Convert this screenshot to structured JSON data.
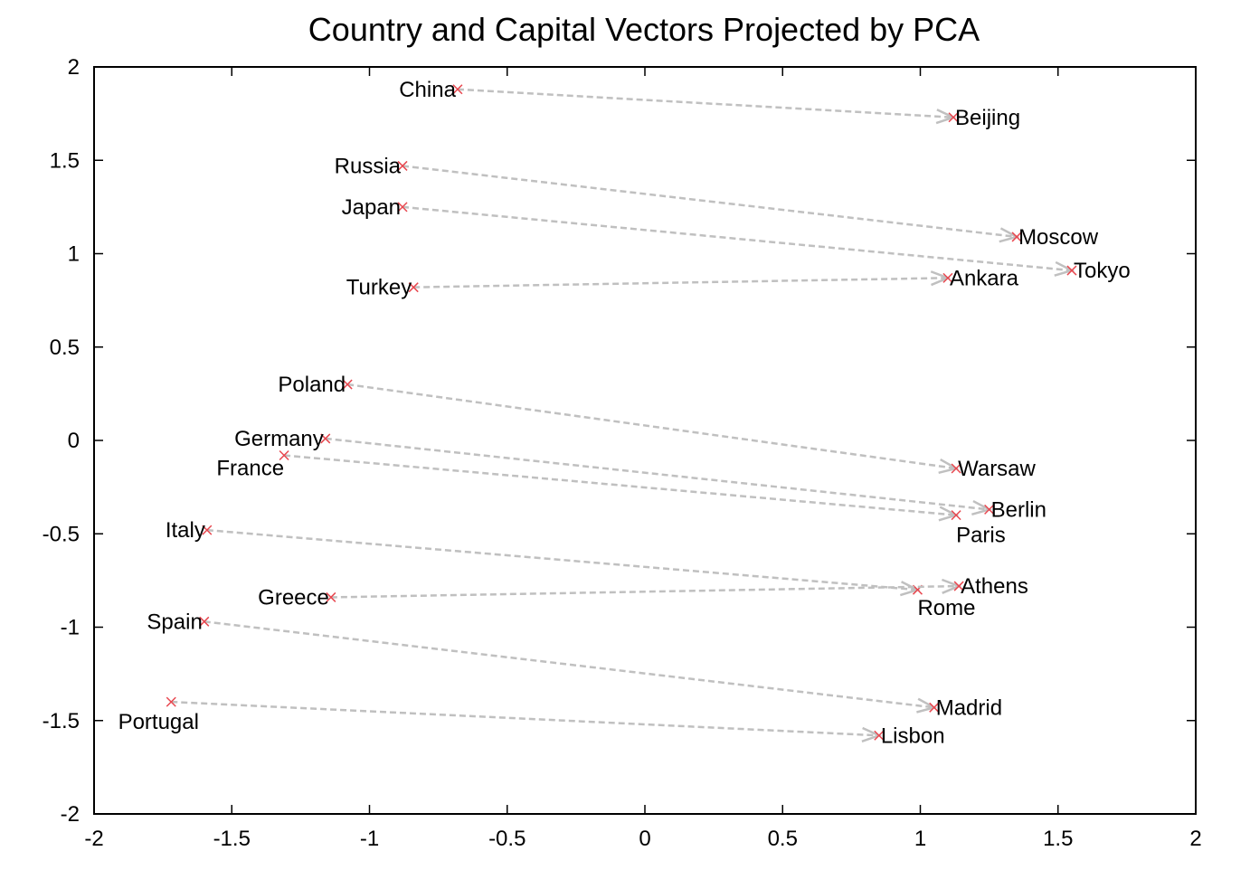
{
  "chart_data": {
    "type": "scatter",
    "title": "Country and Capital Vectors Projected by PCA",
    "xlabel": "",
    "ylabel": "",
    "xlim": [
      -2,
      2
    ],
    "ylim": [
      -2,
      2
    ],
    "x_ticks": [
      -2,
      -1.5,
      -1,
      -0.5,
      0,
      0.5,
      1,
      1.5,
      2
    ],
    "y_ticks": [
      -2,
      -1.5,
      -1,
      -0.5,
      0,
      0.5,
      1,
      1.5,
      2
    ],
    "x_tick_labels": [
      "-2",
      "-1.5",
      "-1",
      "-0.5",
      "0",
      "0.5",
      "1",
      "1.5",
      "2"
    ],
    "y_tick_labels": [
      "-2",
      "-1.5",
      "-1",
      "-0.5",
      "0",
      "0.5",
      "1",
      "1.5",
      "2"
    ],
    "grid": false,
    "marker_color": "#e8474f",
    "arrow_color": "#c0c0c0",
    "pairs": [
      {
        "country": "China",
        "country_xy": [
          -0.68,
          1.88
        ],
        "capital": "Beijing",
        "capital_xy": [
          1.12,
          1.73
        ]
      },
      {
        "country": "Russia",
        "country_xy": [
          -0.88,
          1.47
        ],
        "capital": "Moscow",
        "capital_xy": [
          1.35,
          1.09
        ]
      },
      {
        "country": "Japan",
        "country_xy": [
          -0.88,
          1.25
        ],
        "capital": "Tokyo",
        "capital_xy": [
          1.55,
          0.91
        ]
      },
      {
        "country": "Turkey",
        "country_xy": [
          -0.84,
          0.82
        ],
        "capital": "Ankara",
        "capital_xy": [
          1.1,
          0.87
        ]
      },
      {
        "country": "Poland",
        "country_xy": [
          -1.08,
          0.3
        ],
        "capital": "Warsaw",
        "capital_xy": [
          1.13,
          -0.15
        ]
      },
      {
        "country": "Germany",
        "country_xy": [
          -1.16,
          0.01
        ],
        "capital": "Berlin",
        "capital_xy": [
          1.25,
          -0.37
        ]
      },
      {
        "country": "France",
        "country_xy": [
          -1.31,
          -0.08
        ],
        "capital": "Paris",
        "capital_xy": [
          1.13,
          -0.4
        ]
      },
      {
        "country": "Italy",
        "country_xy": [
          -1.59,
          -0.48
        ],
        "capital": "Rome",
        "capital_xy": [
          0.99,
          -0.8
        ]
      },
      {
        "country": "Greece",
        "country_xy": [
          -1.14,
          -0.84
        ],
        "capital": "Athens",
        "capital_xy": [
          1.14,
          -0.78
        ]
      },
      {
        "country": "Spain",
        "country_xy": [
          -1.6,
          -0.97
        ],
        "capital": "Madrid",
        "capital_xy": [
          1.05,
          -1.43
        ]
      },
      {
        "country": "Portugal",
        "country_xy": [
          -1.72,
          -1.4
        ],
        "capital": "Lisbon",
        "capital_xy": [
          0.85,
          -1.58
        ]
      }
    ]
  }
}
